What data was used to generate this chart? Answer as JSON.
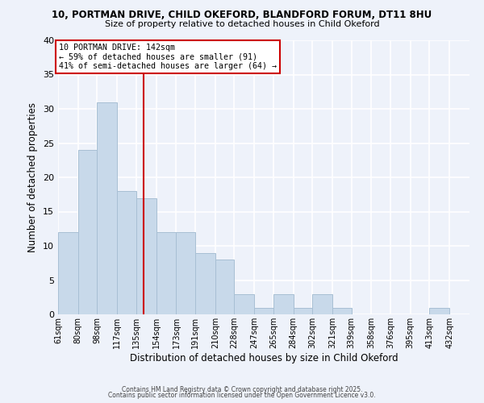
{
  "title1": "10, PORTMAN DRIVE, CHILD OKEFORD, BLANDFORD FORUM, DT11 8HU",
  "title2": "Size of property relative to detached houses in Child Okeford",
  "xlabel": "Distribution of detached houses by size in Child Okeford",
  "ylabel": "Number of detached properties",
  "bin_labels": [
    "61sqm",
    "80sqm",
    "98sqm",
    "117sqm",
    "135sqm",
    "154sqm",
    "173sqm",
    "191sqm",
    "210sqm",
    "228sqm",
    "247sqm",
    "265sqm",
    "284sqm",
    "302sqm",
    "321sqm",
    "339sqm",
    "358sqm",
    "376sqm",
    "395sqm",
    "413sqm",
    "432sqm"
  ],
  "bin_edges": [
    61,
    80,
    98,
    117,
    135,
    154,
    173,
    191,
    210,
    228,
    247,
    265,
    284,
    302,
    321,
    339,
    358,
    376,
    395,
    413,
    432,
    451
  ],
  "counts": [
    12,
    24,
    31,
    18,
    17,
    12,
    12,
    9,
    8,
    3,
    1,
    3,
    1,
    3,
    1,
    0,
    0,
    0,
    0,
    1,
    0
  ],
  "bar_color": "#c8d9ea",
  "bar_edge_color": "#a8bfd4",
  "vline_x": 142,
  "vline_color": "#cc0000",
  "annotation_text": "10 PORTMAN DRIVE: 142sqm\n← 59% of detached houses are smaller (91)\n41% of semi-detached houses are larger (64) →",
  "annotation_box_color": "white",
  "annotation_box_edge": "#cc0000",
  "ylim": [
    0,
    40
  ],
  "yticks": [
    0,
    5,
    10,
    15,
    20,
    25,
    30,
    35,
    40
  ],
  "background_color": "#eef2fa",
  "grid_color": "white",
  "footer1": "Contains HM Land Registry data © Crown copyright and database right 2025.",
  "footer2": "Contains public sector information licensed under the Open Government Licence v3.0."
}
